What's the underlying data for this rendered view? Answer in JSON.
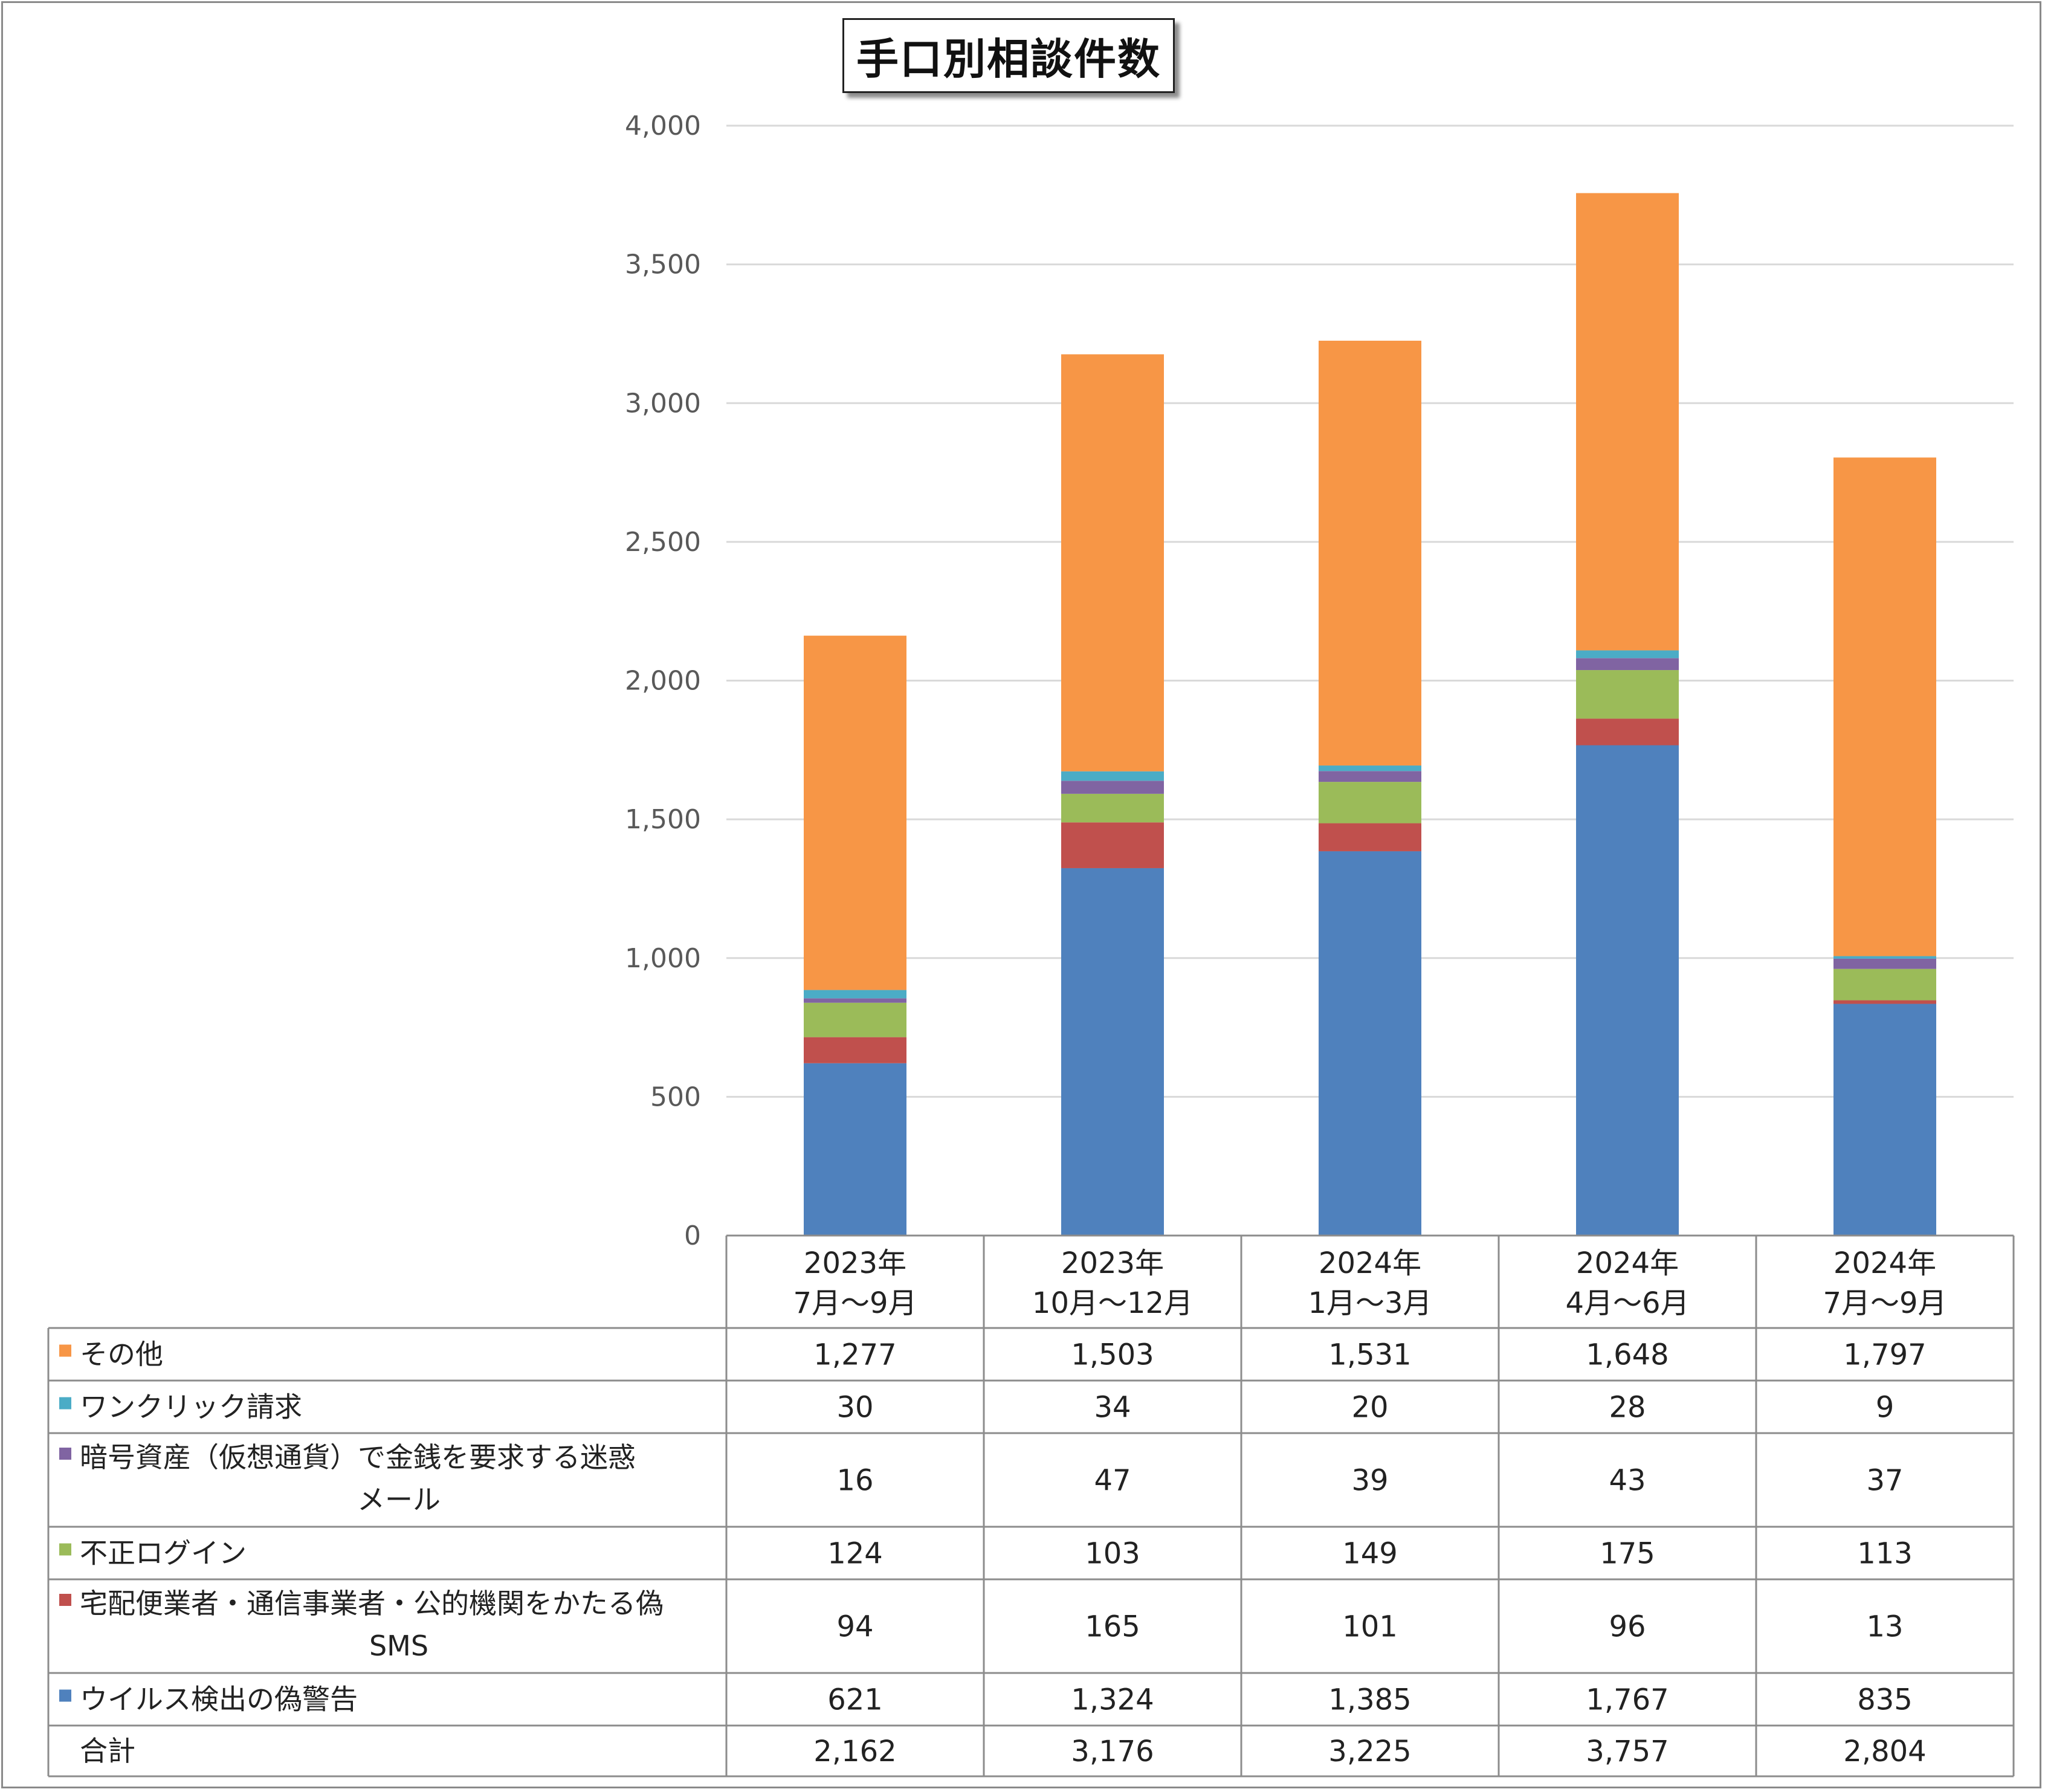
{
  "chart_data": {
    "type": "bar",
    "stacked": true,
    "title": "手口別相談件数",
    "categories": [
      [
        "2023年",
        "7月～9月"
      ],
      [
        "2023年",
        "10月～12月"
      ],
      [
        "2024年",
        "1月～3月"
      ],
      [
        "2024年",
        "4月～6月"
      ],
      [
        "2024年",
        "7月～9月"
      ]
    ],
    "series": [
      {
        "name": "ウイルス検出の偽警告",
        "color": "#4f81bd",
        "values": [
          621,
          1324,
          1385,
          1767,
          835
        ]
      },
      {
        "name": [
          "宅配便業者・通信事業者・公的機関をかたる偽",
          "SMS"
        ],
        "color": "#c0504d",
        "values": [
          94,
          165,
          101,
          96,
          13
        ]
      },
      {
        "name": "不正ログイン",
        "color": "#9bbb59",
        "values": [
          124,
          103,
          149,
          175,
          113
        ]
      },
      {
        "name": [
          "暗号資産（仮想通貨）で金銭を要求する迷惑",
          "メール"
        ],
        "color": "#8064a2",
        "values": [
          16,
          47,
          39,
          43,
          37
        ]
      },
      {
        "name": "ワンクリック請求",
        "color": "#4bacc6",
        "values": [
          30,
          34,
          20,
          28,
          9
        ]
      },
      {
        "name": "その他",
        "color": "#f79646",
        "values": [
          1277,
          1503,
          1531,
          1648,
          1797
        ]
      }
    ],
    "table_row_order": [
      5,
      4,
      3,
      2,
      1,
      0
    ],
    "total": {
      "label": "合計",
      "values": [
        "2,162",
        "3,176",
        "3,225",
        "3,757",
        "2,804"
      ]
    },
    "ylim": [
      0,
      4000
    ],
    "yticks": [
      0,
      500,
      1000,
      1500,
      2000,
      2500,
      3000,
      3500,
      4000
    ],
    "grid": true,
    "legend": "data-table"
  }
}
